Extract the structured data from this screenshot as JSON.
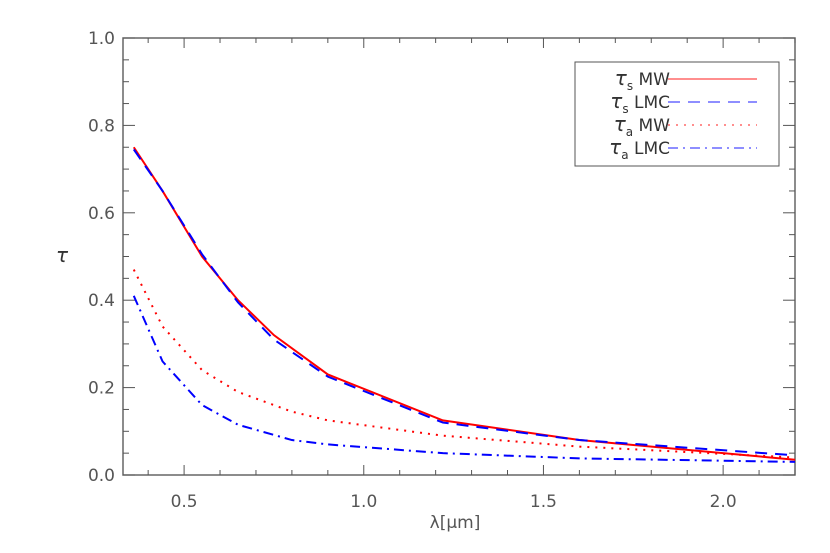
{
  "chart_data": {
    "type": "line",
    "xlabel": "λ[μm]",
    "ylabel": "τ",
    "xlim": [
      0.33,
      2.2
    ],
    "ylim": [
      0.0,
      1.0
    ],
    "xticks": [
      "0.5",
      "1.0",
      "1.5",
      "2.0"
    ],
    "yticks": [
      "0.0",
      "0.2",
      "0.4",
      "0.6",
      "0.8",
      "1.0"
    ],
    "grid": false,
    "legend_position": "top-right",
    "series": [
      {
        "name": "τs MW",
        "sym": "τ",
        "sub": "s",
        "label": "MW",
        "color": "#ff0000",
        "dash": "",
        "x": [
          0.36,
          0.44,
          0.55,
          0.65,
          0.75,
          0.9,
          1.22,
          1.6,
          2.2
        ],
        "y": [
          0.75,
          0.65,
          0.5,
          0.4,
          0.32,
          0.23,
          0.125,
          0.08,
          0.035
        ]
      },
      {
        "name": "τs LMC",
        "sym": "τ",
        "sub": "s",
        "label": "LMC",
        "color": "#0000ff",
        "dash": "12,8",
        "x": [
          0.36,
          0.44,
          0.55,
          0.65,
          0.75,
          0.9,
          1.22,
          1.6,
          2.2
        ],
        "y": [
          0.745,
          0.65,
          0.505,
          0.395,
          0.31,
          0.225,
          0.12,
          0.08,
          0.045
        ]
      },
      {
        "name": "τa MW",
        "sym": "τ",
        "sub": "a",
        "label": "MW",
        "color": "#ff0000",
        "dash": "2,6",
        "x": [
          0.36,
          0.44,
          0.55,
          0.65,
          0.8,
          0.9,
          1.22,
          1.6,
          2.2
        ],
        "y": [
          0.47,
          0.34,
          0.24,
          0.19,
          0.145,
          0.125,
          0.09,
          0.065,
          0.04
        ]
      },
      {
        "name": "τa LMC",
        "sym": "τ",
        "sub": "a",
        "label": "LMC",
        "color": "#0000ff",
        "dash": "10,5,2,5",
        "x": [
          0.36,
          0.44,
          0.55,
          0.65,
          0.8,
          0.9,
          1.22,
          1.6,
          2.2
        ],
        "y": [
          0.41,
          0.26,
          0.16,
          0.115,
          0.08,
          0.07,
          0.05,
          0.038,
          0.03
        ]
      }
    ]
  }
}
